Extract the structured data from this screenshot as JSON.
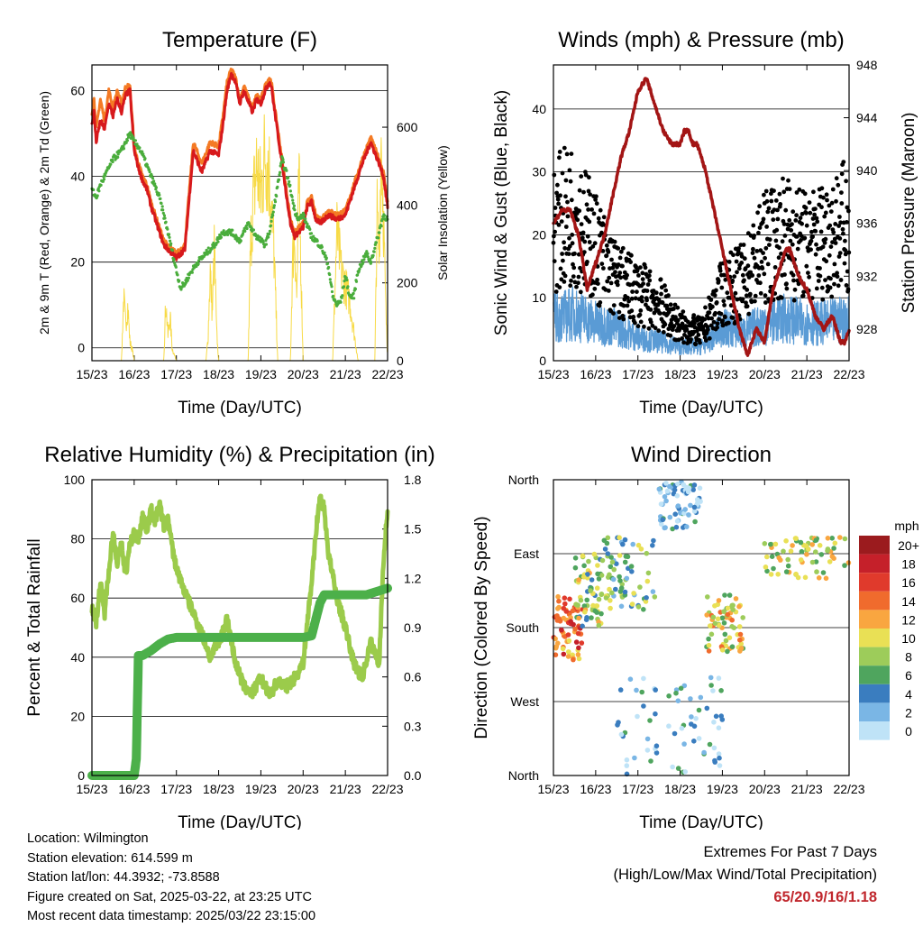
{
  "colors": {
    "temp_red": "#d7191c",
    "temp_orange": "#f47a24",
    "dewpoint_green": "#4aad3c",
    "solar_yellow": "#f7da46",
    "wind_blue": "#5a9bd5",
    "gust_black": "#000000",
    "pressure_maroon": "#a31515",
    "rh_lightgreen": "#9bcb4b",
    "precip_green": "#4cb04a",
    "extremes_red": "#c0272d"
  },
  "time_ticks": [
    "15/23",
    "16/23",
    "17/23",
    "18/23",
    "19/23",
    "20/23",
    "21/23",
    "22/23"
  ],
  "chart_data": [
    {
      "id": "temperature",
      "type": "line",
      "title": "Temperature (F)",
      "xlabel": "Time (Day/UTC)",
      "ylabel": "2m & 9m T (Red, Orange) & 2m Td (Green)",
      "y2label": "Solar Insolation (Yellow)",
      "ylim": [
        -3,
        66
      ],
      "y2lim": [
        0,
        760
      ],
      "yticks": [
        0,
        20,
        40,
        60
      ],
      "y2ticks": [
        0,
        200,
        400,
        600
      ],
      "grid": true,
      "series": [
        {
          "color": "temp_red",
          "axis": "left",
          "x": [
            0,
            0.05,
            0.1,
            0.2,
            0.3,
            0.4,
            0.5,
            0.6,
            0.7,
            0.8,
            0.9,
            1.0,
            1.1,
            1.2,
            1.3,
            1.4,
            1.5,
            1.6,
            1.7,
            1.8,
            1.9,
            2.0,
            2.2,
            2.4,
            2.6,
            2.8,
            3.0,
            3.1,
            3.2,
            3.3,
            3.4,
            3.5,
            3.6,
            3.8,
            3.9,
            4.0,
            4.1,
            4.2,
            4.25,
            4.3,
            4.4,
            4.5,
            4.6,
            4.7,
            4.8,
            4.9,
            5.0,
            5.1,
            5.2,
            5.3,
            5.4,
            5.6,
            5.8,
            6.0,
            6.2,
            6.4,
            6.6,
            6.8,
            6.9,
            7.0
          ],
          "y": [
            52,
            55,
            48,
            53,
            51,
            57,
            54,
            58,
            55,
            59,
            60,
            46,
            42,
            39,
            37,
            33,
            30,
            27,
            24,
            23,
            22,
            21,
            23,
            46,
            41,
            46,
            45,
            52,
            60,
            64,
            62,
            57,
            60,
            55,
            58,
            57,
            60,
            62,
            61,
            57,
            50,
            43,
            36,
            29,
            26,
            27,
            28,
            33,
            34,
            30,
            29,
            31,
            30,
            31,
            37,
            43,
            48,
            43,
            40,
            33
          ]
        },
        {
          "color": "temp_orange",
          "axis": "left",
          "x": [
            0,
            0.05,
            0.1,
            0.2,
            0.3,
            0.4,
            0.5,
            0.6,
            0.7,
            0.8,
            0.9,
            1.0,
            1.1,
            1.2,
            1.3,
            1.4,
            1.5,
            1.6,
            1.7,
            1.8,
            1.9,
            2.0,
            2.2,
            2.4,
            2.6,
            2.8,
            3.0,
            3.1,
            3.2,
            3.3,
            3.4,
            3.5,
            3.6,
            3.8,
            3.9,
            4.0,
            4.1,
            4.2,
            4.25,
            4.3,
            4.4,
            4.5,
            4.6,
            4.7,
            4.8,
            4.9,
            5.0,
            5.1,
            5.2,
            5.3,
            5.4,
            5.6,
            5.8,
            6.0,
            6.2,
            6.4,
            6.6,
            6.8,
            6.9,
            7.0
          ],
          "y": [
            55,
            58,
            51,
            58,
            53,
            60,
            56,
            60,
            57,
            61,
            61,
            47,
            43,
            40,
            38,
            34,
            31,
            28,
            25,
            24,
            23,
            22,
            24,
            48,
            43,
            48,
            47,
            54,
            62,
            65,
            63,
            58,
            61,
            56,
            59,
            58,
            61,
            63,
            62,
            58,
            51,
            44,
            37,
            30,
            27,
            28,
            29,
            34,
            35,
            31,
            30,
            32,
            31,
            32,
            38,
            44,
            49,
            44,
            41,
            34
          ]
        },
        {
          "color": "dewpoint_green",
          "axis": "left",
          "marker": "dot",
          "x": [
            0,
            0.1,
            0.2,
            0.3,
            0.4,
            0.5,
            0.6,
            0.7,
            0.8,
            0.9,
            1.0,
            1.1,
            1.2,
            1.4,
            1.6,
            1.8,
            2.0,
            2.1,
            2.2,
            2.3,
            2.5,
            2.7,
            2.9,
            3.1,
            3.3,
            3.5,
            3.7,
            3.9,
            4.1,
            4.2,
            4.3,
            4.5,
            4.6,
            4.7,
            4.8,
            4.9,
            5.0,
            5.2,
            5.4,
            5.5,
            5.6,
            5.7,
            5.8,
            5.9,
            6.0,
            6.1,
            6.2,
            6.3,
            6.4,
            6.5,
            6.6,
            6.8,
            6.9,
            7.0
          ],
          "y": [
            37,
            35,
            38,
            40,
            42,
            44,
            45,
            46,
            48,
            50,
            48,
            47,
            45,
            40,
            35,
            27,
            18,
            14,
            15,
            17,
            20,
            22,
            24,
            27,
            27,
            25,
            29,
            26,
            24,
            27,
            32,
            44,
            41,
            37,
            32,
            30,
            31,
            26,
            24,
            22,
            19,
            12,
            10,
            11,
            17,
            12,
            12,
            18,
            20,
            22,
            20,
            27,
            31,
            30
          ]
        },
        {
          "color": "solar_yellow",
          "axis": "right",
          "x": [
            0.7,
            0.75,
            0.8,
            0.85,
            0.9,
            0.95,
            1.0,
            1.7,
            1.75,
            1.8,
            1.85,
            1.9,
            2.0,
            2.7,
            2.75,
            2.8,
            2.85,
            2.9,
            2.95,
            3.0,
            3.7,
            3.75,
            3.8,
            3.9,
            4.0,
            4.1,
            4.2,
            4.3,
            4.4,
            4.7,
            4.75,
            4.8,
            4.85,
            4.9,
            4.95,
            5.0,
            5.7,
            5.8,
            5.9,
            6.0,
            6.1,
            6.3,
            6.7,
            6.75,
            6.8,
            6.85,
            6.9,
            6.95,
            7.0
          ],
          "y": [
            0,
            210,
            120,
            180,
            60,
            40,
            0,
            0,
            200,
            80,
            150,
            40,
            0,
            0,
            80,
            300,
            150,
            380,
            100,
            0,
            0,
            350,
            500,
            650,
            550,
            700,
            620,
            400,
            0,
            0,
            330,
            420,
            200,
            600,
            300,
            0,
            0,
            430,
            300,
            250,
            200,
            0,
            0,
            480,
            350,
            760,
            500,
            200,
            0
          ]
        }
      ]
    },
    {
      "id": "wind_pressure",
      "type": "scatter",
      "title": "Winds (mph) & Pressure (mb)",
      "xlabel": "Time (Day/UTC)",
      "ylabel": "Sonic Wind & Gust (Blue, Black)",
      "y2label": "Station Pressure (Maroon)",
      "ylim": [
        0,
        47
      ],
      "y2lim": [
        925.6,
        948
      ],
      "yticks": [
        0,
        10,
        20,
        30,
        40
      ],
      "y2ticks": [
        928,
        932,
        936,
        940,
        944,
        948
      ],
      "grid": true,
      "series": [
        {
          "color": "wind_blue",
          "axis": "left",
          "kind": "band",
          "x": [
            0,
            0.5,
            1.0,
            1.5,
            2.0,
            2.5,
            3.0,
            3.5,
            4.0,
            4.5,
            5.0,
            5.5,
            6.0,
            6.5,
            7.0
          ],
          "y": [
            9,
            10,
            8,
            7,
            5,
            4,
            3,
            3,
            7,
            6,
            8,
            9,
            8,
            8,
            9
          ]
        },
        {
          "color": "gust_black",
          "axis": "left",
          "kind": "points",
          "x": [
            0,
            0.5,
            1.0,
            1.5,
            2.0,
            2.5,
            3.0,
            3.5,
            4.0,
            4.5,
            5.0,
            5.5,
            6.0,
            6.5,
            7.0
          ],
          "y": [
            24,
            26,
            20,
            14,
            12,
            10,
            6,
            5,
            12,
            14,
            20,
            22,
            20,
            22,
            24
          ]
        },
        {
          "color": "pressure_maroon",
          "axis": "right",
          "kind": "line",
          "x": [
            0,
            0.2,
            0.4,
            0.6,
            0.8,
            1.0,
            1.2,
            1.4,
            1.6,
            1.8,
            2.0,
            2.2,
            2.4,
            2.5,
            2.6,
            2.8,
            3.0,
            3.1,
            3.2,
            3.3,
            3.4,
            3.6,
            3.8,
            4.0,
            4.2,
            4.4,
            4.6,
            4.8,
            5.0,
            5.1,
            5.2,
            5.3,
            5.4,
            5.5,
            5.6,
            5.8,
            6.0,
            6.2,
            6.4,
            6.6,
            6.8,
            6.9,
            7.0
          ],
          "y": [
            936,
            937,
            937,
            935,
            931,
            933,
            935,
            938,
            941,
            943,
            946,
            947,
            945,
            944,
            943,
            942,
            942,
            943,
            943,
            942,
            942,
            940,
            937,
            934,
            931,
            928,
            926,
            928,
            927,
            929,
            931,
            932,
            933,
            934,
            934,
            932,
            931,
            929,
            928,
            929,
            927,
            927,
            928
          ]
        }
      ]
    },
    {
      "id": "rh_precip",
      "type": "line",
      "title": "Relative Humidity (%) & Precipitation (in)",
      "xlabel": "Time (Day/UTC)",
      "ylabel": "Percent & Total Rainfall",
      "ylim": [
        0,
        100
      ],
      "y2lim": [
        0,
        1.8
      ],
      "yticks": [
        0,
        20,
        40,
        60,
        80,
        100
      ],
      "y2ticks": [
        "0.0",
        "0.3",
        "0.6",
        "0.9",
        "1.2",
        "1.5",
        "1.8"
      ],
      "grid": true,
      "series": [
        {
          "color": "rh_lightgreen",
          "axis": "left",
          "x": [
            0,
            0.1,
            0.2,
            0.3,
            0.4,
            0.5,
            0.6,
            0.7,
            0.8,
            0.9,
            1.0,
            1.1,
            1.2,
            1.3,
            1.4,
            1.5,
            1.6,
            1.7,
            1.8,
            1.9,
            2.0,
            2.2,
            2.4,
            2.6,
            2.8,
            3.0,
            3.2,
            3.4,
            3.6,
            3.8,
            4.0,
            4.2,
            4.4,
            4.6,
            4.8,
            5.0,
            5.1,
            5.2,
            5.3,
            5.4,
            5.5,
            5.6,
            5.8,
            6.0,
            6.2,
            6.4,
            6.6,
            6.8,
            6.9,
            7.0
          ],
          "y": [
            57,
            52,
            65,
            55,
            70,
            82,
            72,
            78,
            68,
            78,
            82,
            80,
            88,
            83,
            90,
            86,
            92,
            84,
            87,
            77,
            70,
            62,
            55,
            48,
            40,
            45,
            53,
            38,
            30,
            28,
            33,
            27,
            32,
            30,
            33,
            38,
            52,
            65,
            82,
            94,
            90,
            75,
            60,
            50,
            38,
            33,
            45,
            38,
            72,
            90
          ]
        },
        {
          "color": "precip_green",
          "axis": "right",
          "x": [
            0,
            1.0,
            1.05,
            1.1,
            1.2,
            1.4,
            1.6,
            1.8,
            2.0,
            2.2,
            2.4,
            2.6,
            2.8,
            3.0,
            3.5,
            4.0,
            4.5,
            5.0,
            5.2,
            5.3,
            5.4,
            5.5,
            5.6,
            5.8,
            6.0,
            6.5,
            7.0
          ],
          "y": [
            0,
            0,
            0.1,
            0.73,
            0.73,
            0.76,
            0.8,
            0.83,
            0.84,
            0.84,
            0.84,
            0.84,
            0.84,
            0.84,
            0.84,
            0.84,
            0.84,
            0.84,
            0.85,
            0.95,
            1.05,
            1.1,
            1.1,
            1.1,
            1.1,
            1.1,
            1.14
          ]
        }
      ]
    },
    {
      "id": "wind_direction",
      "type": "scatter",
      "title": "Wind Direction",
      "xlabel": "Time (Day/UTC)",
      "ylabel": "Direction (Colored By Speed)",
      "yticks": [
        "North",
        "West",
        "South",
        "East",
        "North"
      ],
      "grid": true,
      "colorbar_title": "mph",
      "colorbar_labels": [
        "20+",
        "18",
        "16",
        "14",
        "12",
        "10",
        "8",
        "6",
        "4",
        "2",
        "0"
      ],
      "colorbar_colors": [
        "#9b1b1e",
        "#c5202a",
        "#e03a2c",
        "#f06b2d",
        "#f9a640",
        "#e9e055",
        "#9dcc5a",
        "#4fa55e",
        "#3a7dbf",
        "#7ab6e5",
        "#bfe3f7"
      ],
      "direction_clusters": [
        {
          "x": [
            0.0,
            0.7
          ],
          "y": [
            140,
            220
          ],
          "speed": 14
        },
        {
          "x": [
            0.5,
            1.2
          ],
          "y": [
            180,
            270
          ],
          "speed": 8
        },
        {
          "x": [
            1.2,
            2.4
          ],
          "y": [
            200,
            290
          ],
          "speed": 6
        },
        {
          "x": [
            2.5,
            3.5
          ],
          "y": [
            300,
            360
          ],
          "speed": 2
        },
        {
          "x": [
            3.6,
            4.5
          ],
          "y": [
            150,
            220
          ],
          "speed": 10
        },
        {
          "x": [
            5.0,
            7.0
          ],
          "y": [
            240,
            290
          ],
          "speed": 9
        },
        {
          "x": [
            1.5,
            4.0
          ],
          "y": [
            0,
            120
          ],
          "speed": 3
        }
      ]
    }
  ],
  "footer": {
    "location": "Location: Wilmington",
    "elevation": "Station elevation: 614.599 m",
    "latlon": "Station lat/lon: 44.3932; -73.8588",
    "created": "Figure created on Sat, 2025-03-22, at 23:25 UTC",
    "recent": "Most recent data timestamp: 2025/03/22 23:15:00"
  },
  "extremes": {
    "heading": "Extremes For Past 7 Days",
    "subheading": "(High/Low/Max Wind/Total Precipitation)",
    "values": "65/20.9/16/1.18"
  }
}
